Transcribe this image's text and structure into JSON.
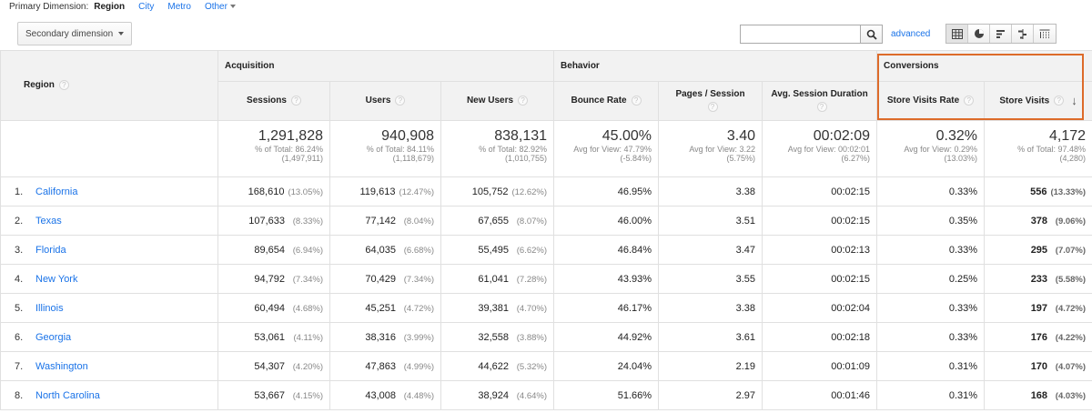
{
  "primary_dimension": {
    "label": "Primary Dimension:",
    "options": [
      "Region",
      "City",
      "Metro",
      "Other"
    ],
    "active": "Region"
  },
  "secondary_dimension": {
    "label": "Secondary dimension"
  },
  "search": {
    "value": "",
    "placeholder": ""
  },
  "advanced_label": "advanced",
  "view_icons": [
    "table-view-icon",
    "pie-view-icon",
    "bar-view-icon",
    "comparison-view-icon",
    "pivot-view-icon"
  ],
  "colors": {
    "link": "#1a73e8",
    "highlight_border": "#dd6b2a"
  },
  "header": {
    "region": "Region",
    "groups": {
      "acquisition": "Acquisition",
      "behavior": "Behavior",
      "conversions": "Conversions"
    },
    "columns": {
      "sessions": "Sessions",
      "users": "Users",
      "new_users": "New Users",
      "bounce_rate": "Bounce Rate",
      "pages_session": "Pages / Session",
      "avg_session_duration": "Avg. Session Duration",
      "store_visits_rate": "Store Visits Rate",
      "store_visits": "Store Visits"
    },
    "help_glyph": "?",
    "sort_glyph": "↓"
  },
  "totals": {
    "sessions": {
      "value": "1,291,828",
      "line1": "% of Total: 86.24%",
      "line2": "(1,497,911)"
    },
    "users": {
      "value": "940,908",
      "line1": "% of Total: 84.11%",
      "line2": "(1,118,679)"
    },
    "new_users": {
      "value": "838,131",
      "line1": "% of Total: 82.92%",
      "line2": "(1,010,755)"
    },
    "bounce_rate": {
      "value": "45.00%",
      "line1": "Avg for View: 47.79%",
      "line2": "(-5.84%)"
    },
    "pages_session": {
      "value": "3.40",
      "line1": "Avg for View: 3.22",
      "line2": "(5.75%)"
    },
    "avg_session_duration": {
      "value": "00:02:09",
      "line1": "Avg for View: 00:02:01",
      "line2": "(6.27%)"
    },
    "store_visits_rate": {
      "value": "0.32%",
      "line1": "Avg for View: 0.29%",
      "line2": "(13.03%)"
    },
    "store_visits": {
      "value": "4,172",
      "line1": "% of Total: 97.48%",
      "line2": "(4,280)"
    }
  },
  "rows": [
    {
      "index": "1.",
      "region": "California",
      "sessions": "168,610",
      "sessions_pct": "(13.05%)",
      "users": "119,613",
      "users_pct": "(12.47%)",
      "new_users": "105,752",
      "new_users_pct": "(12.62%)",
      "bounce_rate": "46.95%",
      "pages_session": "3.38",
      "duration": "00:02:15",
      "store_visits_rate": "0.33%",
      "store_visits": "556",
      "store_visits_pct": "(13.33%)"
    },
    {
      "index": "2.",
      "region": "Texas",
      "sessions": "107,633",
      "sessions_pct": "(8.33%)",
      "users": "77,142",
      "users_pct": "(8.04%)",
      "new_users": "67,655",
      "new_users_pct": "(8.07%)",
      "bounce_rate": "46.00%",
      "pages_session": "3.51",
      "duration": "00:02:15",
      "store_visits_rate": "0.35%",
      "store_visits": "378",
      "store_visits_pct": "(9.06%)"
    },
    {
      "index": "3.",
      "region": "Florida",
      "sessions": "89,654",
      "sessions_pct": "(6.94%)",
      "users": "64,035",
      "users_pct": "(6.68%)",
      "new_users": "55,495",
      "new_users_pct": "(6.62%)",
      "bounce_rate": "46.84%",
      "pages_session": "3.47",
      "duration": "00:02:13",
      "store_visits_rate": "0.33%",
      "store_visits": "295",
      "store_visits_pct": "(7.07%)"
    },
    {
      "index": "4.",
      "region": "New York",
      "sessions": "94,792",
      "sessions_pct": "(7.34%)",
      "users": "70,429",
      "users_pct": "(7.34%)",
      "new_users": "61,041",
      "new_users_pct": "(7.28%)",
      "bounce_rate": "43.93%",
      "pages_session": "3.55",
      "duration": "00:02:15",
      "store_visits_rate": "0.25%",
      "store_visits": "233",
      "store_visits_pct": "(5.58%)"
    },
    {
      "index": "5.",
      "region": "Illinois",
      "sessions": "60,494",
      "sessions_pct": "(4.68%)",
      "users": "45,251",
      "users_pct": "(4.72%)",
      "new_users": "39,381",
      "new_users_pct": "(4.70%)",
      "bounce_rate": "46.17%",
      "pages_session": "3.38",
      "duration": "00:02:04",
      "store_visits_rate": "0.33%",
      "store_visits": "197",
      "store_visits_pct": "(4.72%)"
    },
    {
      "index": "6.",
      "region": "Georgia",
      "sessions": "53,061",
      "sessions_pct": "(4.11%)",
      "users": "38,316",
      "users_pct": "(3.99%)",
      "new_users": "32,558",
      "new_users_pct": "(3.88%)",
      "bounce_rate": "44.92%",
      "pages_session": "3.61",
      "duration": "00:02:18",
      "store_visits_rate": "0.33%",
      "store_visits": "176",
      "store_visits_pct": "(4.22%)"
    },
    {
      "index": "7.",
      "region": "Washington",
      "sessions": "54,307",
      "sessions_pct": "(4.20%)",
      "users": "47,863",
      "users_pct": "(4.99%)",
      "new_users": "44,622",
      "new_users_pct": "(5.32%)",
      "bounce_rate": "24.04%",
      "pages_session": "2.19",
      "duration": "00:01:09",
      "store_visits_rate": "0.31%",
      "store_visits": "170",
      "store_visits_pct": "(4.07%)"
    },
    {
      "index": "8.",
      "region": "North Carolina",
      "sessions": "53,667",
      "sessions_pct": "(4.15%)",
      "users": "43,008",
      "users_pct": "(4.48%)",
      "new_users": "38,924",
      "new_users_pct": "(4.64%)",
      "bounce_rate": "51.66%",
      "pages_session": "2.97",
      "duration": "00:01:46",
      "store_visits_rate": "0.31%",
      "store_visits": "168",
      "store_visits_pct": "(4.03%)"
    }
  ]
}
